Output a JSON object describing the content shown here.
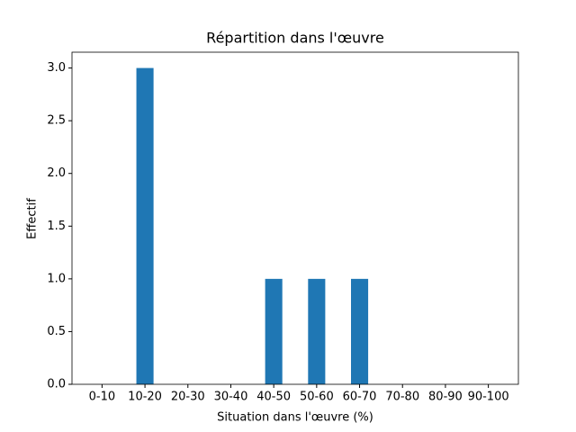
{
  "chart_data": {
    "type": "bar",
    "title": "Répartition dans l'œuvre",
    "x_label": "Situation dans l'œuvre (%)",
    "y_label": "Effectif",
    "categories": [
      "0-10",
      "10-20",
      "20-30",
      "30-40",
      "40-50",
      "50-60",
      "60-70",
      "70-80",
      "80-90",
      "90-100"
    ],
    "values": [
      0,
      3,
      0,
      0,
      1,
      1,
      1,
      0,
      0,
      0
    ],
    "color": "#1f77b4",
    "ylim": [
      0,
      3.15
    ],
    "yticks": [
      {
        "value": 0,
        "label": "0.0"
      },
      {
        "value": 0.5,
        "label": "0.5"
      },
      {
        "value": 1,
        "label": "1.0"
      },
      {
        "value": 1.5,
        "label": "1.5"
      },
      {
        "value": 2,
        "label": "2.0"
      },
      {
        "value": 2.5,
        "label": "2.5"
      },
      {
        "value": 3,
        "label": "3.0"
      }
    ]
  }
}
